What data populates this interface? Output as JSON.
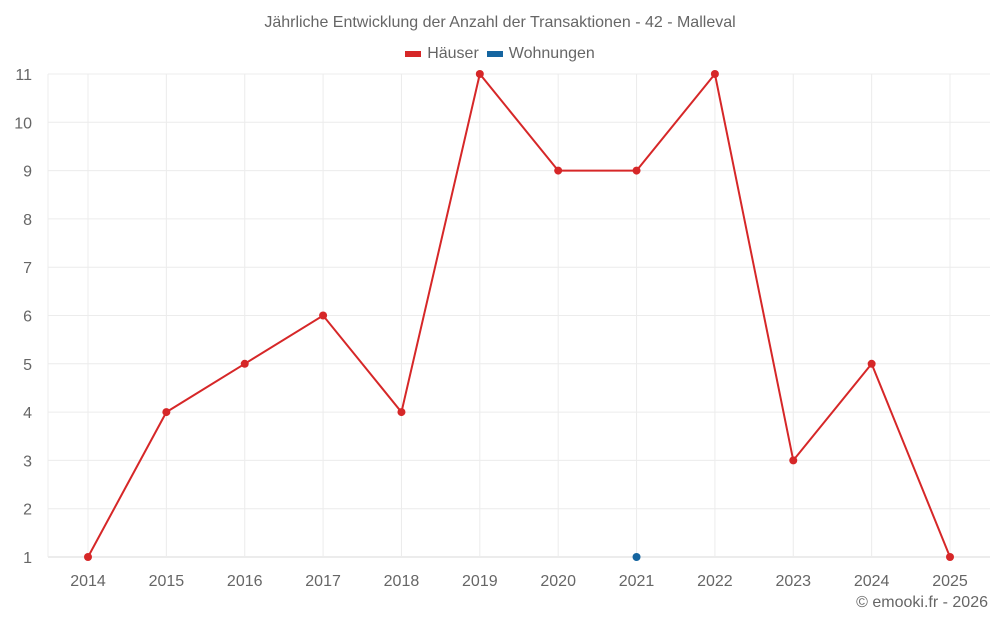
{
  "title": "Jährliche Entwicklung der Anzahl der Transaktionen - 42 - Malleval",
  "legend": [
    {
      "label": "Häuser",
      "color": "#d62728"
    },
    {
      "label": "Wohnungen",
      "color": "#1565a0"
    }
  ],
  "credit": "© emooki.fr - 2026",
  "chart_data": {
    "type": "line",
    "title": "Jährliche Entwicklung der Anzahl der Transaktionen - 42 - Malleval",
    "xlabel": "",
    "ylabel": "",
    "categories": [
      "2014",
      "2015",
      "2016",
      "2017",
      "2018",
      "2019",
      "2020",
      "2021",
      "2022",
      "2023",
      "2024",
      "2025"
    ],
    "series": [
      {
        "name": "Häuser",
        "color": "#d62728",
        "values": [
          1,
          4,
          5,
          6,
          4,
          11,
          9,
          9,
          11,
          3,
          5,
          1
        ]
      },
      {
        "name": "Wohnungen",
        "color": "#1565a0",
        "values": [
          null,
          null,
          null,
          null,
          null,
          null,
          null,
          1,
          null,
          null,
          null,
          null
        ]
      }
    ],
    "ylim": [
      1,
      11
    ],
    "yticks": [
      1,
      2,
      3,
      4,
      5,
      6,
      7,
      8,
      9,
      10,
      11
    ],
    "grid": true,
    "legend_position": "top"
  }
}
